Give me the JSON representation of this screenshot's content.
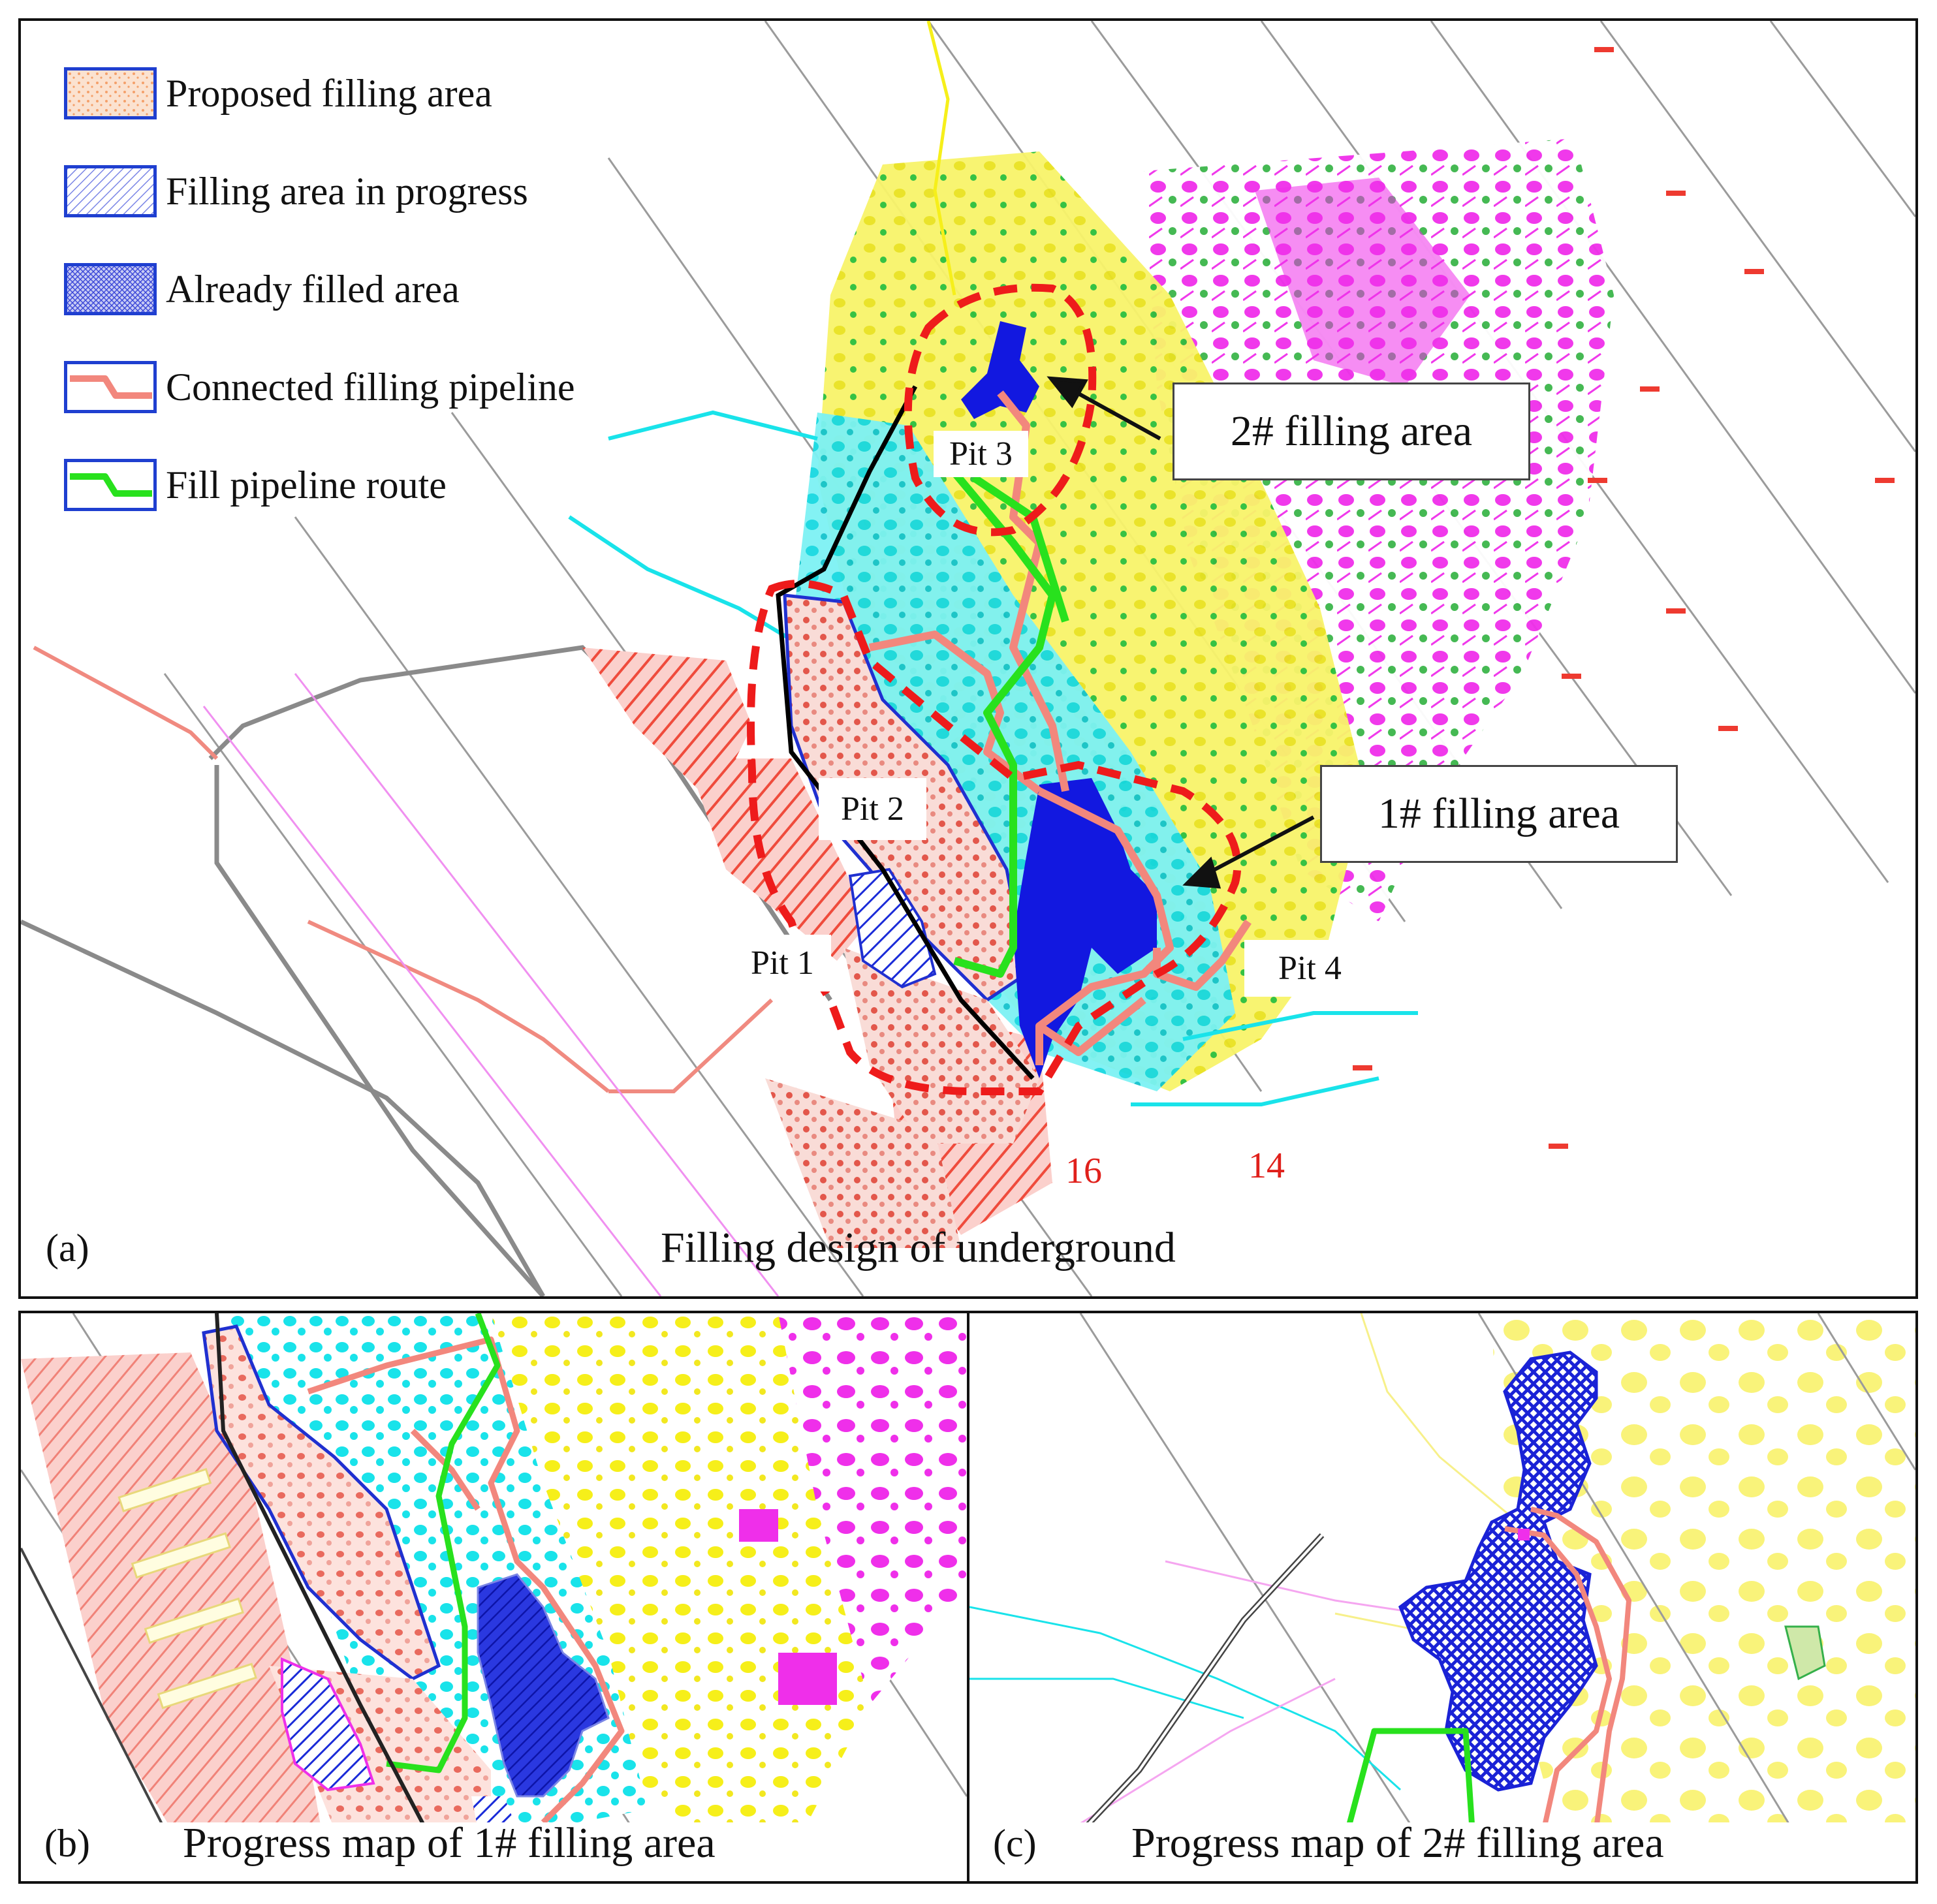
{
  "legend": {
    "items": [
      {
        "label": "Proposed filling area",
        "swatch": "proposed"
      },
      {
        "label": "Filling area in progress",
        "swatch": "progress"
      },
      {
        "label": "Already filled area",
        "swatch": "filled"
      },
      {
        "label": "Connected filling pipeline",
        "swatch": "connected"
      },
      {
        "label": "Fill pipeline route",
        "swatch": "route"
      }
    ]
  },
  "panel_a": {
    "letter": "(a)",
    "caption": "Filling design of underground",
    "callout_2": "2# filling area",
    "callout_1": "1# filling area",
    "pit_1": "Pit 1",
    "pit_2": "Pit 2",
    "pit_3": "Pit 3",
    "pit_4": "Pit 4",
    "num_16": "16",
    "num_14": "14"
  },
  "panel_b": {
    "letter": "(b)",
    "caption": "Progress map of 1# filling area"
  },
  "panel_c": {
    "letter": "(c)",
    "caption": "Progress map of 2# filling area"
  },
  "colors": {
    "magenta": "#ef2fea",
    "yellow": "#f6ef1a",
    "cyan": "#19e3ea",
    "salmon": "#f2877d",
    "blue": "#1218e0",
    "green": "#28e11d",
    "red_dash": "#ee1b1b"
  }
}
